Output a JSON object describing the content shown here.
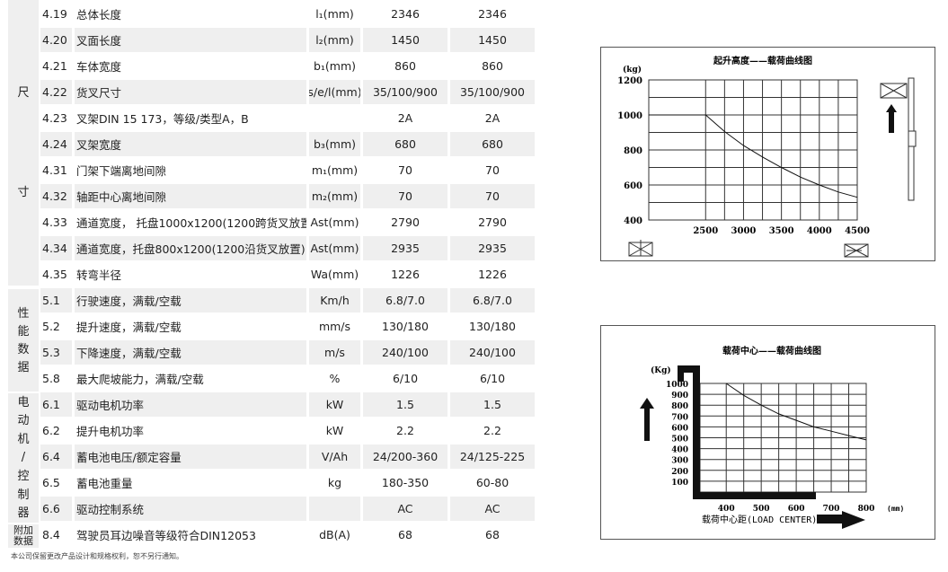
{
  "categories": [
    {
      "label": [
        "尺",
        "寸"
      ]
    },
    {
      "label": [
        "性",
        "能",
        "数",
        "据"
      ]
    },
    {
      "label": [
        "电",
        "动",
        "机",
        "/",
        "控",
        "制",
        "器"
      ]
    },
    {
      "label": [
        "附加",
        "数据"
      ]
    }
  ],
  "rows": [
    {
      "num": "4.19",
      "desc": "总体长度",
      "unit": "l₁(mm)",
      "v1": "2346",
      "v2": "2346"
    },
    {
      "num": "4.20",
      "desc": "叉面长度",
      "unit": "l₂(mm)",
      "v1": "1450",
      "v2": "1450"
    },
    {
      "num": "4.21",
      "desc": "车体宽度",
      "unit": "b₁(mm)",
      "v1": "860",
      "v2": "860"
    },
    {
      "num": "4.22",
      "desc": "货叉尺寸",
      "unit": "s/e/l(mm)",
      "v1": "35/100/900",
      "v2": "35/100/900"
    },
    {
      "num": "4.23",
      "desc": "叉架DIN 15 173，等级/类型A，B",
      "unit": "",
      "v1": "2A",
      "v2": "2A"
    },
    {
      "num": "4.24",
      "desc": "叉架宽度",
      "unit": "b₃(mm)",
      "v1": "680",
      "v2": "680"
    },
    {
      "num": "4.31",
      "desc": "门架下端离地间隙",
      "unit": "m₁(mm)",
      "v1": "70",
      "v2": "70"
    },
    {
      "num": "4.32",
      "desc": "轴距中心离地间隙",
      "unit": "m₂(mm)",
      "v1": "70",
      "v2": "70"
    },
    {
      "num": "4.33",
      "desc": "通道宽度， 托盘1000x1200(1200跨货叉放置)",
      "unit": "Ast(mm)",
      "v1": "2790",
      "v2": "2790"
    },
    {
      "num": "4.34",
      "desc": "通道宽度，托盘800x1200(1200沿货叉放置)",
      "unit": "Ast(mm)",
      "v1": "2935",
      "v2": "2935"
    },
    {
      "num": "4.35",
      "desc": "转弯半径",
      "unit": "Wa(mm)",
      "v1": "1226",
      "v2": "1226"
    },
    {
      "num": "5.1",
      "desc": "行驶速度，满载/空载",
      "unit": "Km/h",
      "v1": "6.8/7.0",
      "v2": "6.8/7.0"
    },
    {
      "num": "5.2",
      "desc": "提升速度，满载/空载",
      "unit": "mm/s",
      "v1": "130/180",
      "v2": "130/180"
    },
    {
      "num": "5.3",
      "desc": "下降速度，满载/空载",
      "unit": "m/s",
      "v1": "240/100",
      "v2": "240/100"
    },
    {
      "num": "5.8",
      "desc": "最大爬坡能力，满载/空载",
      "unit": "%",
      "v1": "6/10",
      "v2": "6/10"
    },
    {
      "num": "6.1",
      "desc": "驱动电机功率",
      "unit": "kW",
      "v1": "1.5",
      "v2": "1.5"
    },
    {
      "num": "6.2",
      "desc": "提升电机功率",
      "unit": "kW",
      "v1": "2.2",
      "v2": "2.2"
    },
    {
      "num": "6.4",
      "desc": "蓄电池电压/额定容量",
      "unit": "V/Ah",
      "v1": "24/200-360",
      "v2": "24/125-225"
    },
    {
      "num": "6.5",
      "desc": "蓄电池重量",
      "unit": "kg",
      "v1": "180-350",
      "v2": "60-80"
    },
    {
      "num": "6.6",
      "desc": "驱动控制系统",
      "unit": "",
      "v1": "AC",
      "v2": "AC"
    },
    {
      "num": "8.4",
      "desc": "驾驶员耳边噪音等级符合DIN12053",
      "unit": "dB(A)",
      "v1": "68",
      "v2": "68"
    }
  ],
  "footer": "本公司保留更改产品设计和规格权利，恕不另行通知。",
  "chart_data": [
    {
      "type": "line",
      "title": "起升高度——载荷曲线图",
      "ylabel": "(kg)",
      "xlabel": "",
      "xlim": [
        1750,
        4500
      ],
      "ylim": [
        400,
        1200
      ],
      "grid": true,
      "xticks": [
        "2500",
        "3000",
        "3500",
        "4000",
        "4500"
      ],
      "yticks": [
        "1200",
        "1000",
        "800",
        "600",
        "400"
      ],
      "x": [
        1750,
        2500,
        2750,
        3000,
        3250,
        3500,
        3750,
        4000,
        4250,
        4500
      ],
      "y": [
        1000,
        1000,
        905,
        825,
        760,
        700,
        645,
        600,
        560,
        530
      ]
    },
    {
      "type": "line",
      "title": "载荷中心——载荷曲线图",
      "ylabel": "(Kg)",
      "xlabel": "载荷中心距(LOAD CENTER)",
      "xunit": "(mm)",
      "xlim": [
        325,
        800
      ],
      "ylim": [
        0,
        1000
      ],
      "grid": true,
      "xticks": [
        "400",
        "500",
        "600",
        "700",
        "800"
      ],
      "yticks": [
        "1000",
        "900",
        "800",
        "700",
        "600",
        "500",
        "400",
        "300",
        "200",
        "100"
      ],
      "x": [
        400,
        450,
        500,
        550,
        600,
        650,
        700,
        750,
        800
      ],
      "y": [
        1000,
        890,
        800,
        720,
        660,
        600,
        560,
        520,
        480
      ]
    }
  ]
}
